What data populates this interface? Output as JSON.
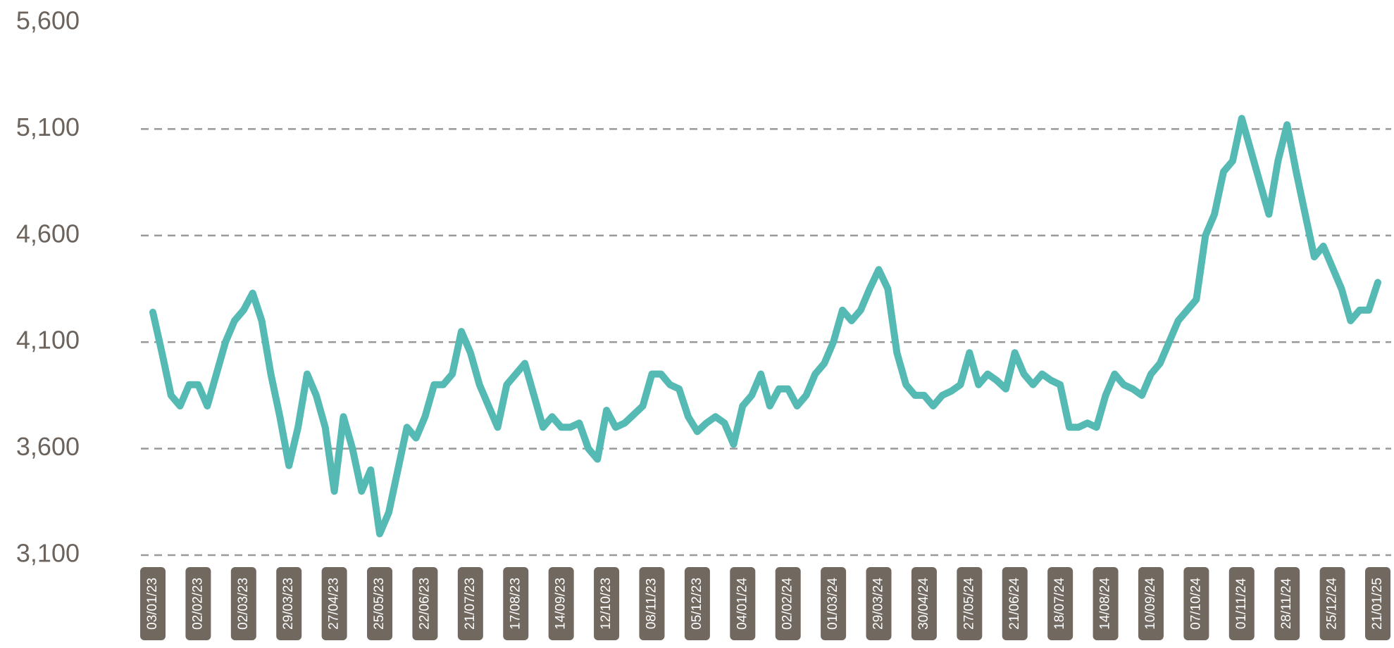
{
  "chart_data": {
    "type": "line",
    "categories": [
      "03/01/23",
      null,
      null,
      null,
      null,
      "02/02/23",
      null,
      null,
      null,
      null,
      "02/03/23",
      null,
      null,
      null,
      null,
      "29/03/23",
      null,
      null,
      null,
      null,
      "27/04/23",
      null,
      null,
      null,
      null,
      "25/05/23",
      null,
      null,
      null,
      null,
      "22/06/23",
      null,
      null,
      null,
      null,
      "21/07/23",
      null,
      null,
      null,
      null,
      "17/08/23",
      null,
      null,
      null,
      null,
      "14/09/23",
      null,
      null,
      null,
      null,
      "12/10/23",
      null,
      null,
      null,
      null,
      "08/11/23",
      null,
      null,
      null,
      null,
      "05/12/23",
      null,
      null,
      null,
      null,
      "04/01/24",
      null,
      null,
      null,
      null,
      "02/02/24",
      null,
      null,
      null,
      null,
      "01/03/24",
      null,
      null,
      null,
      null,
      "29/03/24",
      null,
      null,
      null,
      null,
      "30/04/24",
      null,
      null,
      null,
      null,
      "27/05/24",
      null,
      null,
      null,
      null,
      "21/06/24",
      null,
      null,
      null,
      null,
      "18/07/24",
      null,
      null,
      null,
      null,
      "14/08/24",
      null,
      null,
      null,
      null,
      "10/09/24",
      null,
      null,
      null,
      null,
      "07/10/24",
      null,
      null,
      null,
      null,
      "01/11/24",
      null,
      null,
      null,
      null,
      "28/11/24",
      null,
      null,
      null,
      null,
      "25/12/24",
      null,
      null,
      null,
      null,
      "21/01/25"
    ],
    "values": [
      4240,
      4050,
      3850,
      3800,
      3900,
      3900,
      3800,
      3950,
      4100,
      4200,
      4250,
      4330,
      4200,
      3950,
      3750,
      3520,
      3700,
      3950,
      3850,
      3700,
      3400,
      3750,
      3600,
      3400,
      3500,
      3200,
      3300,
      3500,
      3700,
      3650,
      3750,
      3900,
      3900,
      3950,
      4150,
      4050,
      3900,
      3800,
      3700,
      3900,
      3950,
      4000,
      3850,
      3700,
      3750,
      3700,
      3700,
      3720,
      3600,
      3550,
      3780,
      3700,
      3720,
      3760,
      3800,
      3950,
      3950,
      3900,
      3880,
      3750,
      3680,
      3720,
      3750,
      3720,
      3620,
      3800,
      3850,
      3950,
      3800,
      3880,
      3880,
      3800,
      3850,
      3950,
      4000,
      4100,
      4250,
      4200,
      4250,
      4350,
      4440,
      4350,
      4050,
      3900,
      3850,
      3850,
      3800,
      3850,
      3870,
      3900,
      4050,
      3900,
      3950,
      3920,
      3880,
      4050,
      3950,
      3900,
      3950,
      3920,
      3900,
      3700,
      3700,
      3720,
      3700,
      3850,
      3950,
      3900,
      3880,
      3850,
      3950,
      4000,
      4100,
      4200,
      4250,
      4300,
      4600,
      4700,
      4900,
      4950,
      5150,
      5000,
      4850,
      4700,
      4950,
      5120,
      4900,
      4700,
      4500,
      4550,
      4450,
      4350,
      4200,
      4250,
      4250,
      4380
    ],
    "color": "#55b9b4",
    "ylim": [
      3100,
      5600
    ],
    "yticks": [
      {
        "value": 3100,
        "label": "3,100"
      },
      {
        "value": 3600,
        "label": "3,600"
      },
      {
        "value": 4100,
        "label": "4,100"
      },
      {
        "value": 4600,
        "label": "4,600"
      },
      {
        "value": 5100,
        "label": "5,100"
      },
      {
        "value": 5600,
        "label": "5,600"
      }
    ],
    "grid": true
  }
}
